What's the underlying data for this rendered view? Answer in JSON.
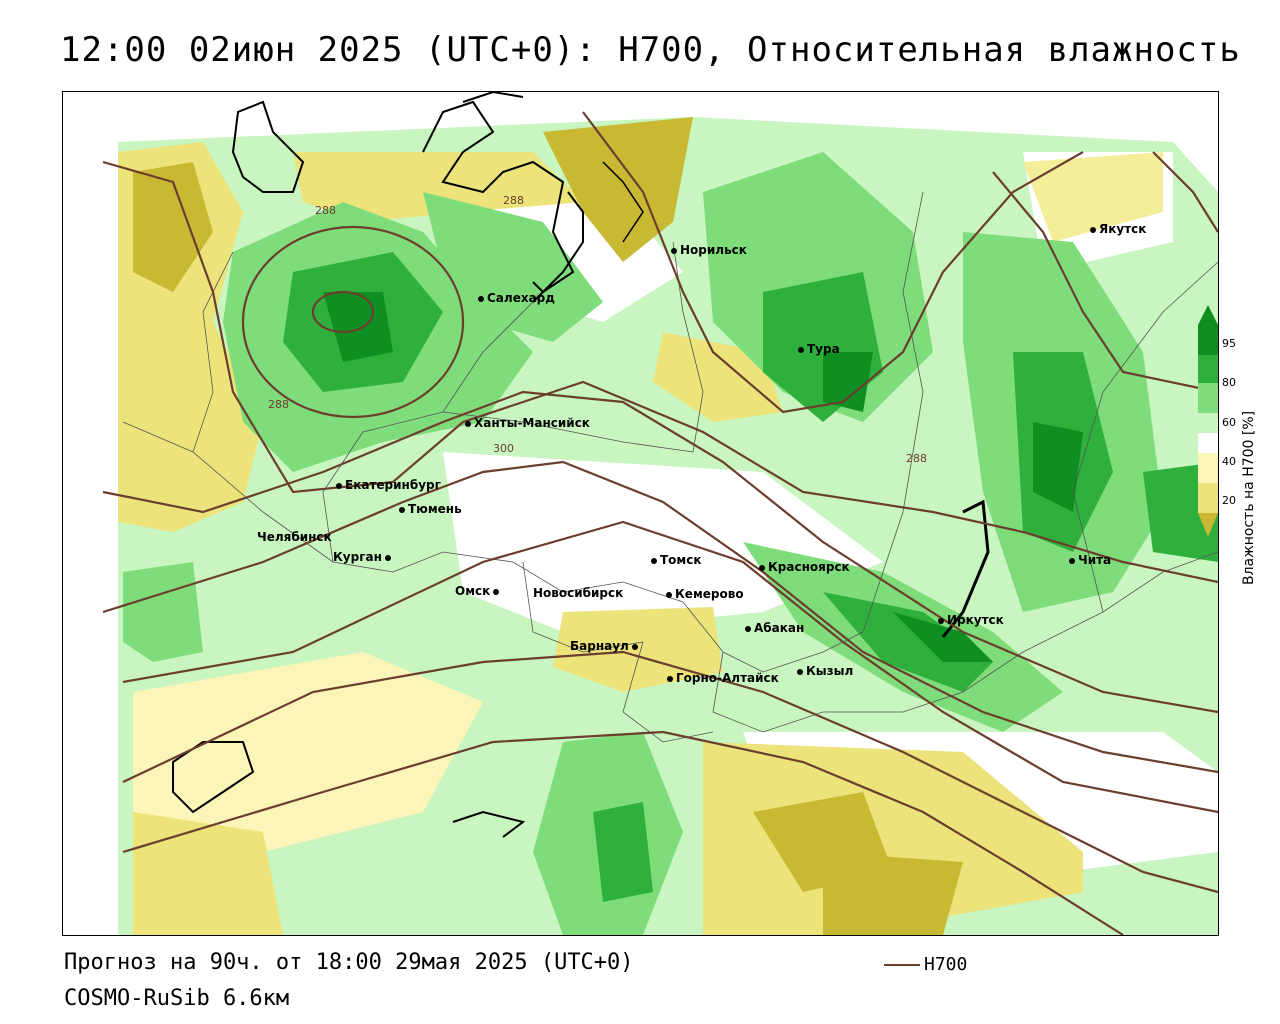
{
  "title": "12:00 02июн 2025 (UTC+0): H700, Относительная влажность",
  "footer": {
    "forecast": "Прогноз на 90ч. от 18:00 29мая 2025 (UTC+0)",
    "model": "COSMO-RuSib 6.6км",
    "contour_legend": "H700"
  },
  "colors": {
    "contour": "#6b3e2e",
    "dry_dark": "#c9b832",
    "dry": "#ece47a",
    "dry_light": "#fbf6b8",
    "moist_light": "#c8f5c0",
    "moist": "#7fdc7a",
    "moist_dark": "#2fb03c",
    "wet": "#0f8f22"
  },
  "legend": {
    "title": "Влажность на H700 [%]",
    "ticks": [
      "95",
      "80",
      "60",
      "40",
      "20"
    ]
  },
  "contour_labels": [
    "288",
    "288",
    "288",
    "300",
    "288"
  ],
  "cities": [
    {
      "name": "Норильск"
    },
    {
      "name": "Якутск"
    },
    {
      "name": "Салехард"
    },
    {
      "name": "Тура"
    },
    {
      "name": "Ханты-Мансийск"
    },
    {
      "name": "Екатеринбург"
    },
    {
      "name": "Тюмень"
    },
    {
      "name": "Челябинск"
    },
    {
      "name": "Курган"
    },
    {
      "name": "Омск"
    },
    {
      "name": "Новосибирск"
    },
    {
      "name": "Томск"
    },
    {
      "name": "Кемерово"
    },
    {
      "name": "Красноярск"
    },
    {
      "name": "Абакан"
    },
    {
      "name": "Барнаул"
    },
    {
      "name": "Горно-Алтайск"
    },
    {
      "name": "Кызыл"
    },
    {
      "name": "Иркутск"
    },
    {
      "name": "Чита"
    }
  ]
}
